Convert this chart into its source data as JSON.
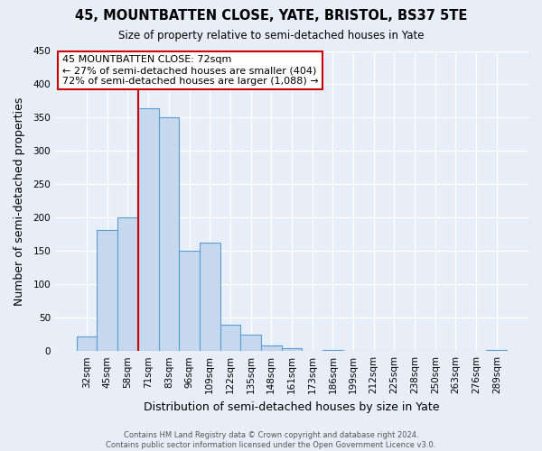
{
  "title": "45, MOUNTBATTEN CLOSE, YATE, BRISTOL, BS37 5TE",
  "subtitle": "Size of property relative to semi-detached houses in Yate",
  "xlabel": "Distribution of semi-detached houses by size in Yate",
  "ylabel": "Number of semi-detached properties",
  "bar_color": "#c5d8ed",
  "bar_edge_color": "#5a9fd4",
  "background_color": "#e8eef7",
  "categories": [
    "32sqm",
    "45sqm",
    "58sqm",
    "71sqm",
    "83sqm",
    "96sqm",
    "109sqm",
    "122sqm",
    "135sqm",
    "148sqm",
    "161sqm",
    "173sqm",
    "186sqm",
    "199sqm",
    "212sqm",
    "225sqm",
    "238sqm",
    "250sqm",
    "263sqm",
    "276sqm",
    "289sqm"
  ],
  "values": [
    22,
    182,
    201,
    364,
    351,
    150,
    163,
    40,
    25,
    9,
    4,
    0,
    1,
    0,
    0,
    0,
    0,
    0,
    0,
    0,
    2
  ],
  "ylim": [
    0,
    450
  ],
  "yticks": [
    0,
    50,
    100,
    150,
    200,
    250,
    300,
    350,
    400,
    450
  ],
  "property_line_idx": 3,
  "annotation_title": "45 MOUNTBATTEN CLOSE: 72sqm",
  "annotation_line1": "← 27% of semi-detached houses are smaller (404)",
  "annotation_line2": "72% of semi-detached houses are larger (1,088) →",
  "annotation_box_color": "#ffffff",
  "annotation_box_edge_color": "#cc0000",
  "footer_line1": "Contains HM Land Registry data © Crown copyright and database right 2024.",
  "footer_line2": "Contains public sector information licensed under the Open Government Licence v3.0."
}
